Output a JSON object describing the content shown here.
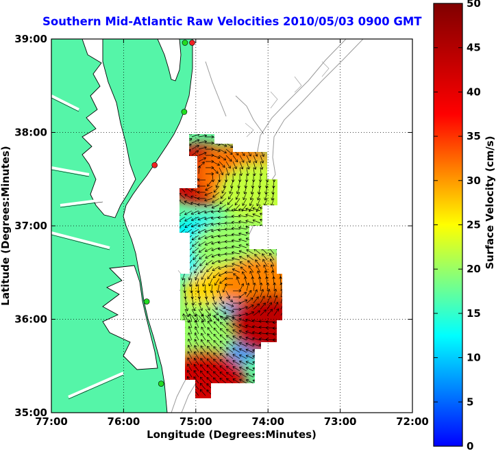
{
  "title": "Southern Mid-Atlantic Raw Velocities 2010/05/03 0900 GMT",
  "axes": {
    "xlabel": "Longitude (Degrees:Minutes)",
    "ylabel": "Latitude (Degrees:Minutes)",
    "xticks": [
      "77:00",
      "76:00",
      "75:00",
      "74:00",
      "73:00",
      "72:00"
    ],
    "yticks": [
      "39:00",
      "38:00",
      "37:00",
      "36:00",
      "35:00"
    ],
    "xlim": [
      -77,
      -72
    ],
    "ylim": [
      35,
      39
    ],
    "grid": "dotted"
  },
  "colorbar": {
    "label": "Surface Velocity (cm/s)",
    "ticks": [
      "0",
      "5",
      "10",
      "15",
      "20",
      "25",
      "30",
      "35",
      "40",
      "45",
      "50"
    ],
    "range": [
      0,
      50
    ],
    "colormap": "jet"
  },
  "colors": {
    "land": "#55f5a8",
    "coastline": "#000000",
    "bathymetry": "#999999",
    "title": "#0000ff",
    "station_green": "#22dd22",
    "station_red": "#ee2222"
  },
  "stations": [
    {
      "lon": -75.05,
      "lat": 38.96,
      "type": "red"
    },
    {
      "lon": -75.15,
      "lat": 38.96,
      "type": "green"
    },
    {
      "lon": -75.16,
      "lat": 38.22,
      "type": "green"
    },
    {
      "lon": -75.57,
      "lat": 37.65,
      "type": "red"
    },
    {
      "lon": -75.68,
      "lat": 36.19,
      "type": "green"
    },
    {
      "lon": -75.48,
      "lat": 35.31,
      "type": "green"
    }
  ],
  "velocity_regions": [
    {
      "name": "north-high",
      "lon": -74.9,
      "lat": 37.55,
      "speed": 42
    },
    {
      "name": "north-mid",
      "lon": -74.4,
      "lat": 37.55,
      "speed": 32
    },
    {
      "name": "north-east",
      "lon": -74.1,
      "lat": 37.35,
      "speed": 22
    },
    {
      "name": "central-low",
      "lon": -74.9,
      "lat": 36.78,
      "speed": 12
    },
    {
      "name": "central-mid",
      "lon": -74.45,
      "lat": 36.75,
      "speed": 20
    },
    {
      "name": "south-mid",
      "lon": -74.6,
      "lat": 36.25,
      "speed": 27
    },
    {
      "name": "south-east",
      "lon": -74.1,
      "lat": 36.35,
      "speed": 31
    },
    {
      "name": "south-low",
      "lon": -74.5,
      "lat": 35.85,
      "speed": 8
    },
    {
      "name": "south-west",
      "lon": -75.05,
      "lat": 35.85,
      "speed": 20
    },
    {
      "name": "south-tip",
      "lon": -74.9,
      "lat": 35.35,
      "speed": 42
    },
    {
      "name": "east-spot",
      "lon": -73.95,
      "lat": 35.95,
      "speed": 44
    }
  ]
}
